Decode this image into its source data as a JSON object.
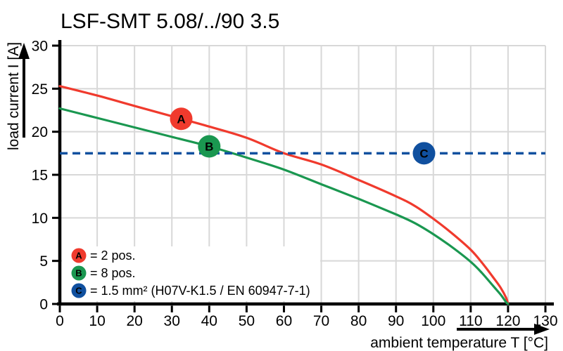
{
  "title": "LSF-SMT 5.08/../90 3.5",
  "chart_data": {
    "type": "line",
    "title": "LSF-SMT 5.08/../90 3.5",
    "xlabel": "ambient temperature T [°C]",
    "ylabel": "load current I [A]",
    "xlim": [
      0,
      130
    ],
    "ylim": [
      0,
      30
    ],
    "x_ticks": [
      0,
      10,
      20,
      30,
      40,
      50,
      60,
      70,
      80,
      90,
      100,
      110,
      120,
      130
    ],
    "y_ticks": [
      0,
      5,
      10,
      15,
      20,
      25,
      30
    ],
    "grid": true,
    "series": [
      {
        "id": "curve-a-2pos",
        "name": "A",
        "label": "2 pos.",
        "color": "#f03a2d",
        "style": "solid",
        "points": [
          [
            0,
            25.3
          ],
          [
            10,
            24.2
          ],
          [
            20,
            23.0
          ],
          [
            30,
            21.8
          ],
          [
            40,
            20.6
          ],
          [
            50,
            19.3
          ],
          [
            60,
            17.5
          ],
          [
            70,
            16.2
          ],
          [
            80,
            14.4
          ],
          [
            90,
            12.5
          ],
          [
            95,
            11.4
          ],
          [
            100,
            9.9
          ],
          [
            105,
            8.2
          ],
          [
            110,
            6.3
          ],
          [
            113,
            4.8
          ],
          [
            116,
            3.1
          ],
          [
            118,
            1.9
          ],
          [
            119.5,
            0.7
          ],
          [
            120,
            0
          ]
        ]
      },
      {
        "id": "curve-b-8pos",
        "name": "B",
        "label": "8 pos.",
        "color": "#1a9750",
        "style": "solid",
        "points": [
          [
            0,
            22.7
          ],
          [
            10,
            21.6
          ],
          [
            20,
            20.5
          ],
          [
            30,
            19.4
          ],
          [
            40,
            18.3
          ],
          [
            50,
            17.0
          ],
          [
            60,
            15.6
          ],
          [
            70,
            13.9
          ],
          [
            80,
            12.2
          ],
          [
            90,
            10.4
          ],
          [
            95,
            9.4
          ],
          [
            100,
            8.1
          ],
          [
            105,
            6.6
          ],
          [
            110,
            4.9
          ],
          [
            113,
            3.6
          ],
          [
            116,
            2.1
          ],
          [
            118,
            1.1
          ],
          [
            119.5,
            0.2
          ],
          [
            120,
            0
          ]
        ]
      },
      {
        "id": "reference-line-c",
        "name": "C",
        "label": "1.5 mm² (H07V-K1.5 / EN 60947-7-1)",
        "color": "#10509f",
        "style": "dashed",
        "points": [
          [
            0,
            17.5
          ],
          [
            130,
            17.5
          ]
        ]
      }
    ],
    "markers": [
      {
        "letter": "A",
        "x": 32.5,
        "y": 21.5,
        "color": "#f03a2d"
      },
      {
        "letter": "B",
        "x": 40,
        "y": 18.3,
        "color": "#1a9750"
      },
      {
        "letter": "C",
        "x": 97.5,
        "y": 17.5,
        "color": "#10509f"
      }
    ],
    "legend": {
      "position": "inside-bottom-left",
      "entries": [
        {
          "letter": "A",
          "color": "#f03a2d",
          "text": "= 2 pos."
        },
        {
          "letter": "B",
          "color": "#1a9750",
          "text": "= 8 pos."
        },
        {
          "letter": "C",
          "color": "#10509f",
          "text": "= 1.5 mm² (H07V-K1.5 / EN 60947-7-1)"
        }
      ]
    },
    "colors": {
      "grid": "#d8d8d8",
      "axis": "#000000",
      "background": "#ffffff",
      "marker_text": "#ffffff"
    }
  }
}
